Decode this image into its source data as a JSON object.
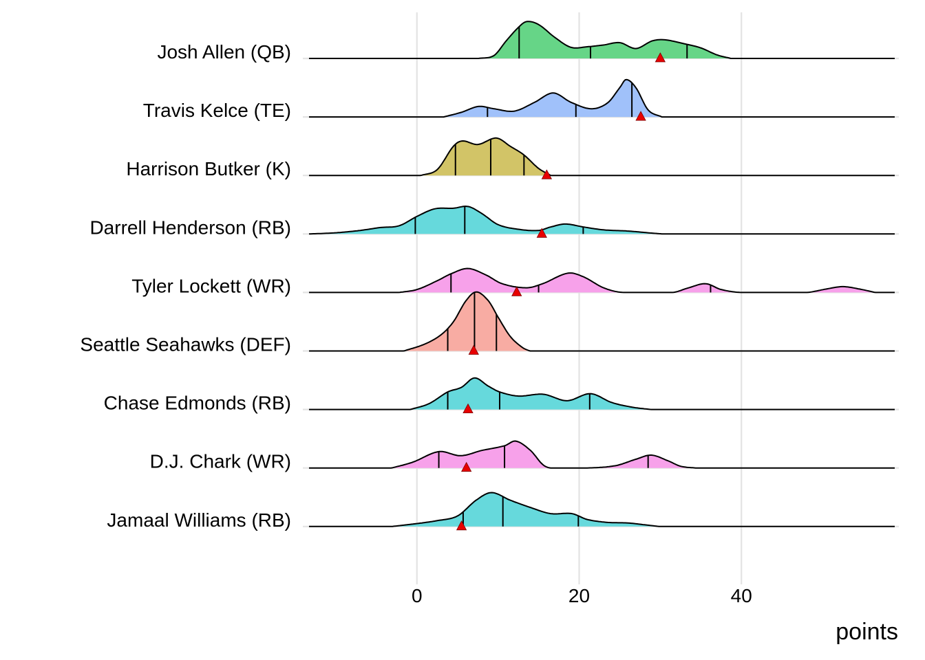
{
  "chart_data": {
    "type": "ridgeline",
    "title": "",
    "xlabel": "points",
    "ylabel": "",
    "xlim": [
      -13.3,
      58.9
    ],
    "x_ticks": [
      0,
      20,
      40
    ],
    "x_tick_labels": [
      "0",
      "20",
      "40"
    ],
    "grid": true,
    "legend": "none",
    "marker_color": "#E80000",
    "series": [
      {
        "name": "Josh Allen (QB)",
        "color": "#66D587",
        "density": [
          [
            7.6,
            0
          ],
          [
            9.5,
            0.05
          ],
          [
            11,
            0.3
          ],
          [
            12.5,
            0.53
          ],
          [
            13.5,
            0.63
          ],
          [
            15,
            0.58
          ],
          [
            17,
            0.36
          ],
          [
            19,
            0.19
          ],
          [
            21,
            0.2
          ],
          [
            23,
            0.23
          ],
          [
            25,
            0.27
          ],
          [
            27,
            0.17
          ],
          [
            29,
            0.3
          ],
          [
            30.5,
            0.32
          ],
          [
            33,
            0.25
          ],
          [
            35,
            0.18
          ],
          [
            37,
            0.06
          ],
          [
            38.7,
            0
          ]
        ],
        "quantiles": [
          12.6,
          21.4,
          33.3
        ],
        "marker": 30.0
      },
      {
        "name": "Travis Kelce (TE)",
        "color": "#A0C1FA",
        "density": [
          [
            3.3,
            0
          ],
          [
            5.5,
            0.08
          ],
          [
            7.6,
            0.18
          ],
          [
            9.5,
            0.14
          ],
          [
            12,
            0.1
          ],
          [
            14.5,
            0.25
          ],
          [
            16.8,
            0.41
          ],
          [
            19,
            0.25
          ],
          [
            21.5,
            0.14
          ],
          [
            23.5,
            0.24
          ],
          [
            25,
            0.5
          ],
          [
            25.8,
            0.64
          ],
          [
            27,
            0.5
          ],
          [
            28.5,
            0.12
          ],
          [
            30.2,
            0
          ]
        ],
        "quantiles": [
          8.7,
          19.6,
          26.5
        ],
        "marker": 27.6
      },
      {
        "name": "Harrison Butker (K)",
        "color": "#D2C467",
        "density": [
          [
            0.5,
            0
          ],
          [
            2.5,
            0.1
          ],
          [
            4.5,
            0.5
          ],
          [
            5.6,
            0.59
          ],
          [
            7.5,
            0.53
          ],
          [
            9.8,
            0.64
          ],
          [
            11.5,
            0.5
          ],
          [
            13.2,
            0.35
          ],
          [
            15,
            0.12
          ],
          [
            16.5,
            0
          ]
        ],
        "quantiles": [
          4.75,
          9.1,
          13.2
        ],
        "marker": 16.0
      },
      {
        "name": "Darrell Henderson (RB)",
        "color": "#66D9DC",
        "density": [
          [
            -13.3,
            0
          ],
          [
            -10,
            0.02
          ],
          [
            -7,
            0.06
          ],
          [
            -4.5,
            0.11
          ],
          [
            -2.2,
            0.14
          ],
          [
            0,
            0.3
          ],
          [
            2.2,
            0.43
          ],
          [
            4.5,
            0.44
          ],
          [
            6.3,
            0.47
          ],
          [
            8,
            0.35
          ],
          [
            10,
            0.16
          ],
          [
            12.5,
            0.08
          ],
          [
            15,
            0.06
          ],
          [
            16.5,
            0.12
          ],
          [
            18.3,
            0.17
          ],
          [
            20.5,
            0.12
          ],
          [
            23,
            0.07
          ],
          [
            26,
            0.05
          ],
          [
            28.5,
            0.02
          ],
          [
            30.3,
            0
          ]
        ],
        "quantiles": [
          -0.2,
          5.9,
          20.5
        ],
        "marker": 15.4
      },
      {
        "name": "Tyler Lockett (WR)",
        "color": "#F7A1EA",
        "density": [
          [
            -2.2,
            0
          ],
          [
            0,
            0.05
          ],
          [
            2.5,
            0.2
          ],
          [
            4.2,
            0.32
          ],
          [
            6.3,
            0.41
          ],
          [
            8.5,
            0.3
          ],
          [
            10.5,
            0.15
          ],
          [
            13.5,
            0.08
          ],
          [
            15.5,
            0.15
          ],
          [
            18.6,
            0.33
          ],
          [
            20.5,
            0.27
          ],
          [
            23,
            0.08
          ],
          [
            25.4,
            0
          ],
          [
            31.5,
            0
          ],
          [
            33.5,
            0.08
          ],
          [
            35.6,
            0.15
          ],
          [
            37.5,
            0.05
          ],
          [
            40,
            0
          ],
          [
            48,
            0
          ],
          [
            50.5,
            0.06
          ],
          [
            52.5,
            0.1
          ],
          [
            54.5,
            0.06
          ],
          [
            56.5,
            0
          ]
        ],
        "quantiles": [
          4.2,
          15.0,
          36.2
        ],
        "marker": 12.3
      },
      {
        "name": "Seattle Seahawks (DEF)",
        "color": "#F8ACA3",
        "density": [
          [
            -1.6,
            0
          ],
          [
            1,
            0.12
          ],
          [
            3,
            0.28
          ],
          [
            4.5,
            0.5
          ],
          [
            6,
            0.85
          ],
          [
            7.3,
            1.01
          ],
          [
            8.8,
            0.86
          ],
          [
            10,
            0.58
          ],
          [
            11.5,
            0.25
          ],
          [
            13,
            0.06
          ],
          [
            13.9,
            0
          ]
        ],
        "quantiles": [
          3.8,
          7.1,
          9.8
        ],
        "marker": 7.0
      },
      {
        "name": "Chase Edmonds (RB)",
        "color": "#66D9DC",
        "density": [
          [
            -0.8,
            0
          ],
          [
            1.5,
            0.1
          ],
          [
            3.8,
            0.3
          ],
          [
            5.5,
            0.38
          ],
          [
            7.1,
            0.54
          ],
          [
            8.8,
            0.4
          ],
          [
            10.2,
            0.3
          ],
          [
            12.5,
            0.23
          ],
          [
            15.6,
            0.26
          ],
          [
            18.5,
            0.15
          ],
          [
            21.4,
            0.27
          ],
          [
            24,
            0.12
          ],
          [
            26.5,
            0.04
          ],
          [
            28.8,
            0
          ]
        ],
        "quantiles": [
          3.8,
          10.2,
          21.3
        ],
        "marker": 6.3
      },
      {
        "name": "D.J. Chark (WR)",
        "color": "#F7A1EA",
        "density": [
          [
            -3.1,
            0
          ],
          [
            -0.5,
            0.1
          ],
          [
            2.7,
            0.28
          ],
          [
            5.4,
            0.21
          ],
          [
            8,
            0.3
          ],
          [
            10.8,
            0.38
          ],
          [
            12.2,
            0.46
          ],
          [
            14,
            0.3
          ],
          [
            15.5,
            0.06
          ],
          [
            16.5,
            0
          ],
          [
            21,
            0
          ],
          [
            24.5,
            0.04
          ],
          [
            27,
            0.15
          ],
          [
            28.9,
            0.22
          ],
          [
            31,
            0.12
          ],
          [
            32.5,
            0.03
          ],
          [
            34.3,
            0
          ]
        ],
        "quantiles": [
          2.7,
          10.8,
          28.5
        ],
        "marker": 6.1
      },
      {
        "name": "Jamaal Williams (RB)",
        "color": "#66D9DC",
        "density": [
          [
            -3.1,
            0
          ],
          [
            0,
            0.05
          ],
          [
            2.5,
            0.1
          ],
          [
            5,
            0.18
          ],
          [
            7.3,
            0.45
          ],
          [
            9.2,
            0.58
          ],
          [
            11.5,
            0.45
          ],
          [
            14.1,
            0.32
          ],
          [
            16.5,
            0.22
          ],
          [
            19.1,
            0.22
          ],
          [
            21,
            0.12
          ],
          [
            23.5,
            0.07
          ],
          [
            26,
            0.06
          ],
          [
            28,
            0.03
          ],
          [
            29.9,
            0
          ]
        ],
        "quantiles": [
          5.7,
          10.6,
          19.9
        ],
        "marker": 5.5
      }
    ]
  }
}
